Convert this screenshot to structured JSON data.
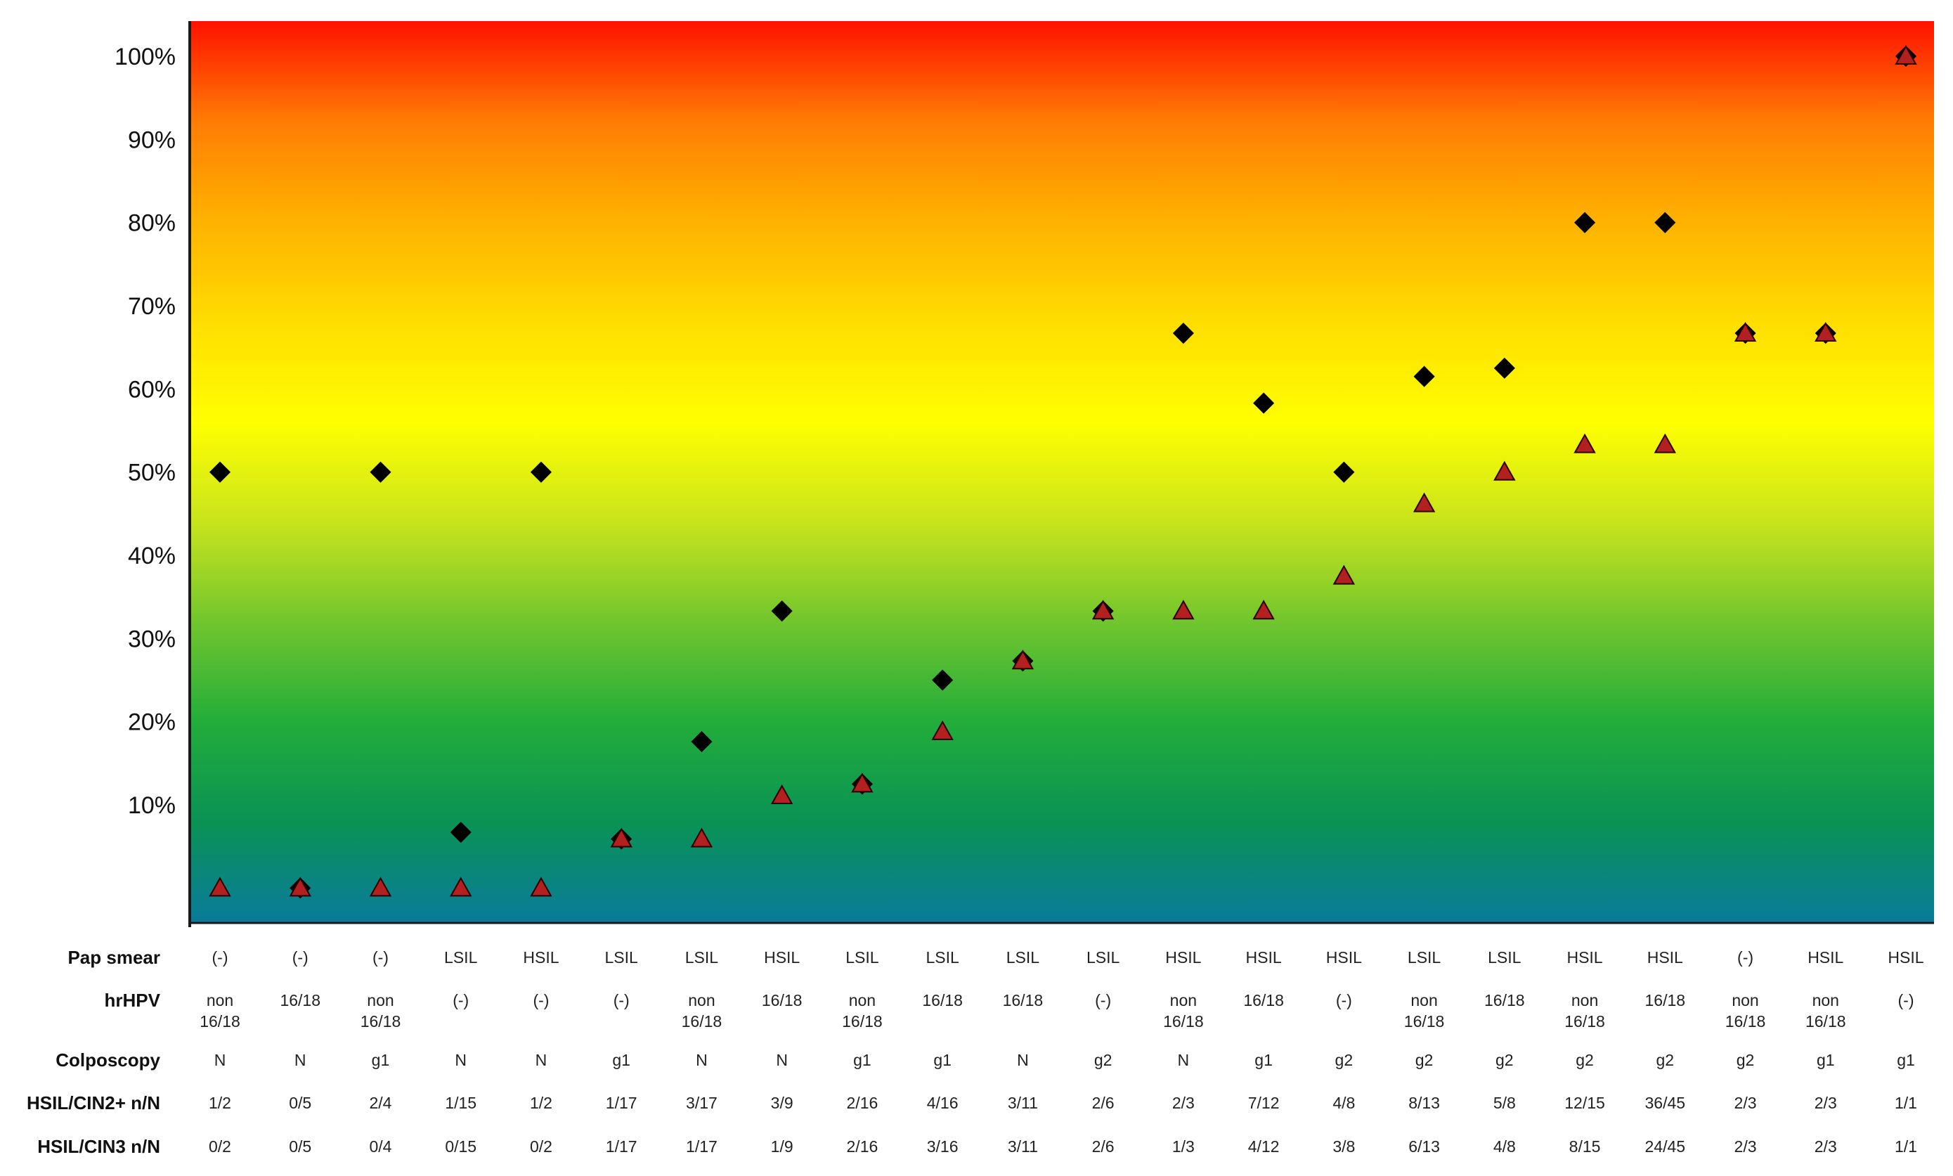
{
  "chart_data": {
    "type": "scatter",
    "title": "",
    "xlabel": "",
    "ylabel": "",
    "y_tick_labels": [
      "10%",
      "20%",
      "30%",
      "40%",
      "50%",
      "60%",
      "70%",
      "80%",
      "90%",
      "100%"
    ],
    "y_tick_values": [
      10,
      20,
      30,
      40,
      50,
      60,
      70,
      80,
      90,
      100
    ],
    "ylim": [
      -4,
      104
    ],
    "grid": false,
    "legend": "none",
    "background": "vertical gradient from blue (bottom) through green and yellow to red (top)",
    "gradient_colors": [
      "#ff1200",
      "#ff7c05",
      "#ffb200",
      "#ffdd00",
      "#ffff00",
      "#c8e41d",
      "#71c52d",
      "#22ad3b",
      "#0a9255",
      "#0a7b9c"
    ],
    "axis_color": "#1a1a1a",
    "row_labels": [
      "Pap smear",
      "hrHPV",
      "Colposcopy",
      "HSIL/CIN2+ n/N",
      "HSIL/CIN3 n/N"
    ],
    "rows": {
      "pap": [
        "(-)",
        "(-)",
        "(-)",
        "LSIL",
        "HSIL",
        "LSIL",
        "LSIL",
        "HSIL",
        "LSIL",
        "LSIL",
        "LSIL",
        "LSIL",
        "HSIL",
        "HSIL",
        "HSIL",
        "LSIL",
        "LSIL",
        "HSIL",
        "HSIL",
        "(-)",
        "HSIL",
        "HSIL"
      ],
      "hpv": [
        [
          "non",
          "16/18"
        ],
        [
          "16/18"
        ],
        [
          "non",
          "16/18"
        ],
        [
          "(-)"
        ],
        [
          "(-)"
        ],
        [
          "(-)"
        ],
        [
          "non",
          "16/18"
        ],
        [
          "16/18"
        ],
        [
          "non",
          "16/18"
        ],
        [
          "16/18"
        ],
        [
          "16/18"
        ],
        [
          "(-)"
        ],
        [
          "non",
          "16/18"
        ],
        [
          "16/18"
        ],
        [
          "(-)"
        ],
        [
          "non",
          "16/18"
        ],
        [
          "16/18"
        ],
        [
          "non",
          "16/18"
        ],
        [
          "16/18"
        ],
        [
          "non",
          "16/18"
        ],
        [
          "non",
          "16/18"
        ],
        [
          "(-)"
        ]
      ],
      "colposcopy": [
        "N",
        "N",
        "g1",
        "N",
        "N",
        "g1",
        "N",
        "N",
        "g1",
        "g1",
        "N",
        "g2",
        "N",
        "g1",
        "g2",
        "g2",
        "g2",
        "g2",
        "g2",
        "g2",
        "g1",
        "g1"
      ],
      "cin2": [
        "1/2",
        "0/5",
        "2/4",
        "1/15",
        "1/2",
        "1/17",
        "3/17",
        "3/9",
        "2/16",
        "4/16",
        "3/11",
        "2/6",
        "2/3",
        "7/12",
        "4/8",
        "8/13",
        "5/8",
        "12/15",
        "36/45",
        "2/3",
        "2/3",
        "1/1"
      ],
      "cin3": [
        "0/2",
        "0/5",
        "0/4",
        "0/15",
        "0/2",
        "1/17",
        "1/17",
        "1/9",
        "2/16",
        "3/16",
        "3/11",
        "2/6",
        "1/3",
        "4/12",
        "3/8",
        "6/13",
        "4/8",
        "8/15",
        "24/45",
        "2/3",
        "2/3",
        "1/1"
      ]
    },
    "series": [
      {
        "marker": "diamond",
        "color": "#000000",
        "values": [
          50,
          0,
          50,
          6.7,
          50,
          5.9,
          17.6,
          33.3,
          12.5,
          25,
          27.3,
          33.3,
          66.7,
          58.3,
          50,
          61.5,
          62.5,
          80,
          80,
          66.7,
          66.7,
          100
        ]
      },
      {
        "marker": "triangle",
        "color": "#b22020",
        "values": [
          0,
          0,
          0,
          0,
          0,
          5.9,
          5.9,
          11.1,
          12.5,
          18.8,
          27.3,
          33.3,
          33.3,
          33.3,
          37.5,
          46.2,
          50,
          53.3,
          53.3,
          66.7,
          66.7,
          100
        ]
      }
    ]
  }
}
